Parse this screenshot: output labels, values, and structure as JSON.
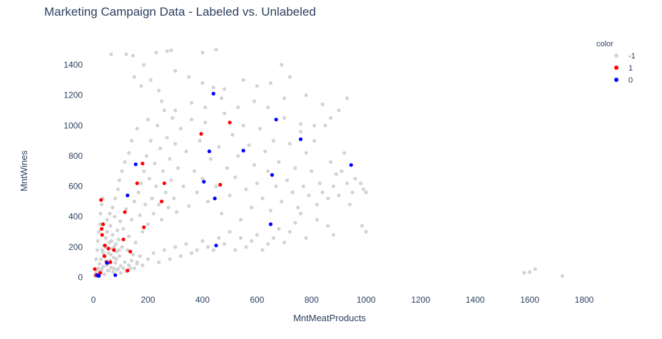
{
  "chart_data": {
    "type": "scatter",
    "title": "Marketing Campaign Data - Labeled vs. Unlabeled",
    "xlabel": "MntMeatProducts",
    "ylabel": "MntWines",
    "xlim": [
      -40,
      1890
    ],
    "ylim": [
      -60,
      1530
    ],
    "x_ticks": [
      0,
      200,
      400,
      600,
      800,
      1000,
      1200,
      1400,
      1600,
      1800
    ],
    "y_ticks": [
      0,
      200,
      400,
      600,
      800,
      1000,
      1200,
      1400
    ],
    "grid": false,
    "legend": {
      "title": "color",
      "position": "top-right"
    },
    "series": [
      {
        "name": "-1",
        "color": "#d3d3d3",
        "points": [
          [
            5,
            10
          ],
          [
            8,
            25
          ],
          [
            12,
            5
          ],
          [
            15,
            40
          ],
          [
            18,
            60
          ],
          [
            20,
            15
          ],
          [
            22,
            90
          ],
          [
            25,
            30
          ],
          [
            28,
            120
          ],
          [
            30,
            50
          ],
          [
            32,
            180
          ],
          [
            35,
            70
          ],
          [
            38,
            210
          ],
          [
            40,
            20
          ],
          [
            42,
            140
          ],
          [
            45,
            260
          ],
          [
            48,
            80
          ],
          [
            50,
            300
          ],
          [
            52,
            45
          ],
          [
            55,
            160
          ],
          [
            58,
            230
          ],
          [
            60,
            110
          ],
          [
            62,
            340
          ],
          [
            65,
            65
          ],
          [
            68,
            190
          ],
          [
            70,
            280
          ],
          [
            72,
            35
          ],
          [
            75,
            130
          ],
          [
            78,
            400
          ],
          [
            80,
            95
          ],
          [
            82,
            220
          ],
          [
            85,
            170
          ],
          [
            88,
            310
          ],
          [
            90,
            55
          ],
          [
            92,
            250
          ],
          [
            95,
            140
          ],
          [
            98,
            370
          ],
          [
            100,
            75
          ],
          [
            105,
            200
          ],
          [
            110,
            320
          ],
          [
            115,
            100
          ],
          [
            120,
            450
          ],
          [
            125,
            180
          ],
          [
            130,
            270
          ],
          [
            135,
            60
          ],
          [
            140,
            380
          ],
          [
            145,
            150
          ],
          [
            150,
            500
          ],
          [
            155,
            230
          ],
          [
            160,
            90
          ],
          [
            10,
            120
          ],
          [
            14,
            180
          ],
          [
            16,
            240
          ],
          [
            20,
            300
          ],
          [
            24,
            350
          ],
          [
            26,
            420
          ],
          [
            30,
            480
          ],
          [
            34,
            520
          ],
          [
            36,
            160
          ],
          [
            44,
            200
          ],
          [
            46,
            110
          ],
          [
            54,
            90
          ],
          [
            56,
            45
          ],
          [
            64,
            150
          ],
          [
            66,
            240
          ],
          [
            74,
            60
          ],
          [
            76,
            200
          ],
          [
            84,
            120
          ],
          [
            86,
            50
          ],
          [
            94,
            180
          ],
          [
            165,
            560
          ],
          [
            170,
            410
          ],
          [
            175,
            620
          ],
          [
            180,
            300
          ],
          [
            185,
            700
          ],
          [
            190,
            480
          ],
          [
            195,
            800
          ],
          [
            200,
            350
          ],
          [
            205,
            650
          ],
          [
            210,
            900
          ],
          [
            215,
            520
          ],
          [
            220,
            420
          ],
          [
            225,
            750
          ],
          [
            230,
            600
          ],
          [
            235,
            1000
          ],
          [
            240,
            480
          ],
          [
            245,
            850
          ],
          [
            250,
            380
          ],
          [
            255,
            700
          ],
          [
            260,
            1100
          ],
          [
            265,
            560
          ],
          [
            270,
            920
          ],
          [
            275,
            460
          ],
          [
            280,
            780
          ],
          [
            285,
            640
          ],
          [
            290,
            1050
          ],
          [
            295,
            520
          ],
          [
            300,
            880
          ],
          [
            305,
            430
          ],
          [
            310,
            720
          ],
          [
            320,
            980
          ],
          [
            330,
            600
          ],
          [
            340,
            830
          ],
          [
            350,
            470
          ],
          [
            360,
            1150
          ],
          [
            370,
            700
          ],
          [
            380,
            560
          ],
          [
            390,
            900
          ],
          [
            400,
            650
          ],
          [
            410,
            1020
          ],
          [
            420,
            500
          ],
          [
            430,
            780
          ],
          [
            440,
            1250
          ],
          [
            450,
            600
          ],
          [
            460,
            860
          ],
          [
            470,
            420
          ],
          [
            480,
            1080
          ],
          [
            490,
            720
          ],
          [
            500,
            540
          ],
          [
            510,
            940
          ],
          [
            520,
            660
          ],
          [
            530,
            800
          ],
          [
            540,
            380
          ],
          [
            550,
            1000
          ],
          [
            560,
            580
          ],
          [
            570,
            870
          ],
          [
            580,
            460
          ],
          [
            590,
            740
          ],
          [
            600,
            620
          ],
          [
            610,
            980
          ],
          [
            620,
            520
          ],
          [
            630,
            830
          ],
          [
            640,
            700
          ],
          [
            650,
            440
          ],
          [
            660,
            900
          ],
          [
            670,
            600
          ],
          [
            680,
            760
          ],
          [
            690,
            500
          ],
          [
            700,
            1050
          ],
          [
            710,
            640
          ],
          [
            720,
            880
          ],
          [
            730,
            560
          ],
          [
            740,
            720
          ],
          [
            750,
            460
          ],
          [
            760,
            1010
          ],
          [
            770,
            600
          ],
          [
            780,
            820
          ],
          [
            790,
            540
          ],
          [
            800,
            700
          ],
          [
            810,
            900
          ],
          [
            820,
            480
          ],
          [
            830,
            620
          ],
          [
            840,
            560
          ],
          [
            850,
            1000
          ],
          [
            860,
            520
          ],
          [
            870,
            760
          ],
          [
            880,
            600
          ],
          [
            890,
            680
          ],
          [
            900,
            540
          ],
          [
            910,
            700
          ],
          [
            920,
            820
          ],
          [
            930,
            620
          ],
          [
            950,
            560
          ],
          [
            980,
            620
          ],
          [
            990,
            580
          ],
          [
            1000,
            560
          ],
          [
            960,
            650
          ],
          [
            940,
            480
          ],
          [
            880,
            280
          ],
          [
            860,
            340
          ],
          [
            820,
            380
          ],
          [
            780,
            260
          ],
          [
            760,
            420
          ],
          [
            740,
            360
          ],
          [
            720,
            300
          ],
          [
            700,
            230
          ],
          [
            680,
            320
          ],
          [
            660,
            260
          ],
          [
            640,
            220
          ],
          [
            620,
            180
          ],
          [
            600,
            280
          ],
          [
            580,
            240
          ],
          [
            560,
            200
          ],
          [
            540,
            260
          ],
          [
            520,
            180
          ],
          [
            500,
            300
          ],
          [
            480,
            220
          ],
          [
            460,
            260
          ],
          [
            440,
            180
          ],
          [
            420,
            200
          ],
          [
            400,
            240
          ],
          [
            380,
            180
          ],
          [
            360,
            160
          ],
          [
            340,
            220
          ],
          [
            320,
            140
          ],
          [
            300,
            200
          ],
          [
            280,
            120
          ],
          [
            260,
            180
          ],
          [
            240,
            100
          ],
          [
            220,
            160
          ],
          [
            200,
            120
          ],
          [
            180,
            80
          ],
          [
            170,
            140
          ],
          [
            160,
            100
          ],
          [
            150,
            60
          ],
          [
            140,
            110
          ],
          [
            130,
            80
          ],
          [
            120,
            40
          ],
          [
            110,
            60
          ],
          [
            100,
            30
          ],
          [
            65,
            1470
          ],
          [
            120,
            1470
          ],
          [
            145,
            1460
          ],
          [
            185,
            1400
          ],
          [
            230,
            1480
          ],
          [
            270,
            1490
          ],
          [
            285,
            1495
          ],
          [
            400,
            1480
          ],
          [
            450,
            1500
          ],
          [
            690,
            1400
          ],
          [
            150,
            1320
          ],
          [
            175,
            1260
          ],
          [
            210,
            1300
          ],
          [
            240,
            1230
          ],
          [
            300,
            1360
          ],
          [
            350,
            1320
          ],
          [
            400,
            1280
          ],
          [
            480,
            1240
          ],
          [
            550,
            1300
          ],
          [
            600,
            1260
          ],
          [
            650,
            1280
          ],
          [
            720,
            1320
          ],
          [
            780,
            1200
          ],
          [
            840,
            1140
          ],
          [
            900,
            1100
          ],
          [
            930,
            1180
          ],
          [
            870,
            1050
          ],
          [
            810,
            1000
          ],
          [
            760,
            960
          ],
          [
            700,
            1180
          ],
          [
            640,
            1120
          ],
          [
            590,
            1160
          ],
          [
            530,
            1120
          ],
          [
            470,
            1180
          ],
          [
            410,
            1120
          ],
          [
            360,
            1040
          ],
          [
            300,
            1100
          ],
          [
            250,
            1160
          ],
          [
            200,
            1040
          ],
          [
            160,
            980
          ],
          [
            140,
            900
          ],
          [
            130,
            820
          ],
          [
            115,
            760
          ],
          [
            105,
            700
          ],
          [
            95,
            640
          ],
          [
            90,
            580
          ],
          [
            80,
            520
          ],
          [
            70,
            460
          ],
          [
            60,
            420
          ],
          [
            50,
            380
          ],
          [
            1580,
            30
          ],
          [
            1600,
            35
          ],
          [
            1620,
            55
          ],
          [
            1720,
            10
          ],
          [
            1000,
            300
          ],
          [
            985,
            340
          ]
        ]
      },
      {
        "name": "1",
        "color": "#ff0000",
        "points": [
          [
            5,
            55
          ],
          [
            10,
            15
          ],
          [
            25,
            30
          ],
          [
            28,
            510
          ],
          [
            30,
            320
          ],
          [
            32,
            280
          ],
          [
            35,
            350
          ],
          [
            40,
            140
          ],
          [
            42,
            210
          ],
          [
            48,
            100
          ],
          [
            55,
            190
          ],
          [
            62,
            100
          ],
          [
            75,
            180
          ],
          [
            110,
            250
          ],
          [
            115,
            430
          ],
          [
            125,
            45
          ],
          [
            135,
            170
          ],
          [
            160,
            620
          ],
          [
            180,
            750
          ],
          [
            185,
            330
          ],
          [
            250,
            500
          ],
          [
            260,
            620
          ],
          [
            395,
            945
          ],
          [
            465,
            610
          ],
          [
            500,
            1020
          ]
        ]
      },
      {
        "name": "0",
        "color": "#0000ff",
        "points": [
          [
            15,
            15
          ],
          [
            20,
            10
          ],
          [
            50,
            95
          ],
          [
            80,
            15
          ],
          [
            125,
            540
          ],
          [
            155,
            745
          ],
          [
            405,
            630
          ],
          [
            425,
            830
          ],
          [
            440,
            1210
          ],
          [
            445,
            520
          ],
          [
            450,
            210
          ],
          [
            550,
            835
          ],
          [
            650,
            350
          ],
          [
            655,
            675
          ],
          [
            670,
            1040
          ],
          [
            760,
            910
          ],
          [
            945,
            740
          ]
        ]
      }
    ]
  }
}
